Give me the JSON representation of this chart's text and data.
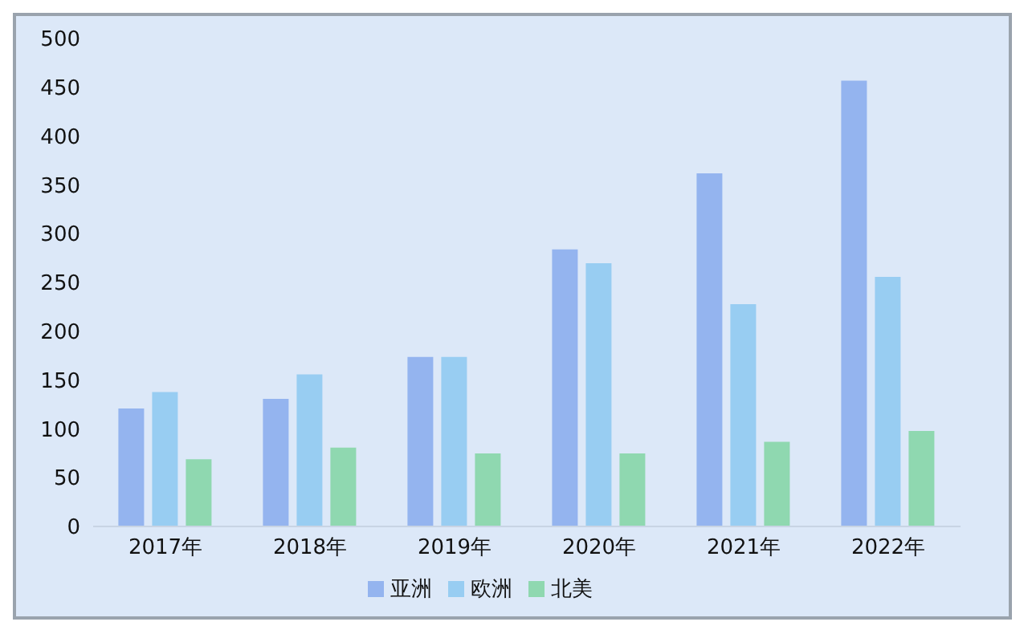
{
  "chart_data": {
    "type": "bar",
    "categories": [
      "2017年",
      "2018年",
      "2019年",
      "2020年",
      "2021年",
      "2022年"
    ],
    "series": [
      {
        "name": "亚洲",
        "color": "#94b4ef",
        "values": [
          120,
          130,
          173,
          283,
          361,
          456
        ]
      },
      {
        "name": "欧洲",
        "color": "#98cdf2",
        "values": [
          137,
          155,
          173,
          269,
          227,
          255
        ]
      },
      {
        "name": "北美",
        "color": "#8fd8b0",
        "values": [
          68,
          80,
          74,
          74,
          86,
          97
        ]
      }
    ],
    "ylim": [
      0,
      500
    ],
    "yticks": [
      0,
      50,
      100,
      150,
      200,
      250,
      300,
      350,
      400,
      450,
      500
    ],
    "legend": "bottom"
  }
}
